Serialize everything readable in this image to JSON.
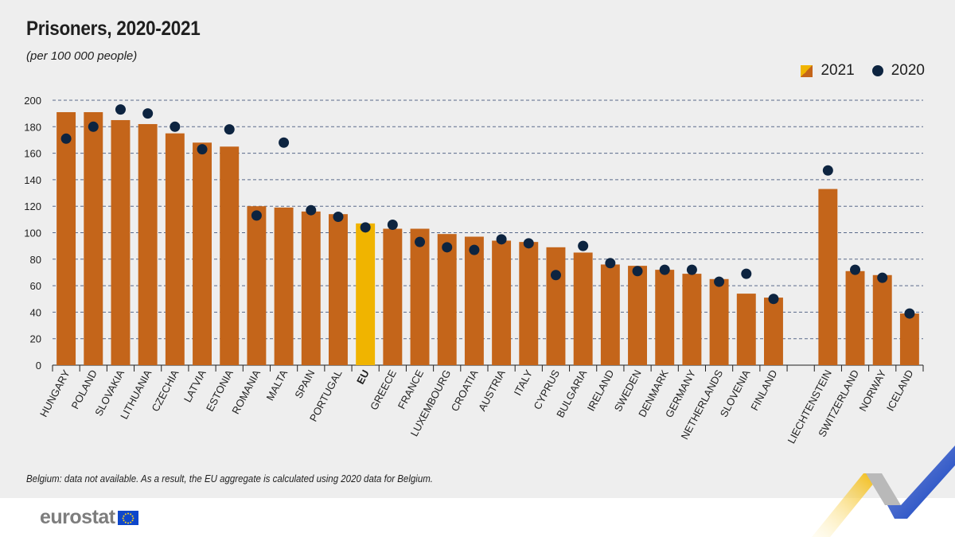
{
  "header": {
    "title": "Prisoners, 2020-2021",
    "subtitle": "(per 100 000 people)"
  },
  "legend": {
    "items": [
      {
        "label": "2021"
      },
      {
        "label": "2020"
      }
    ]
  },
  "colors": {
    "bar": "#c4651a",
    "eu_bar": "#f0b400",
    "dot": "#0d2440",
    "grid": "#5a6a8a"
  },
  "chart_data": {
    "type": "bar",
    "title": "Prisoners, 2020-2021",
    "subtitle": "(per 100 000 people)",
    "ylabel": "",
    "xlabel": "",
    "ylim": [
      0,
      200
    ],
    "yticks": [
      0,
      20,
      40,
      60,
      80,
      100,
      120,
      140,
      160,
      180,
      200
    ],
    "grid": true,
    "legend_position": "top-right",
    "highlight_category": "EU",
    "gap_after": "FINLAND",
    "categories": [
      "HUNGARY",
      "POLAND",
      "SLOVAKIA",
      "LITHUANIA",
      "CZECHIA",
      "LATVIA",
      "ESTONIA",
      "ROMANIA",
      "MALTA",
      "SPAIN",
      "PORTUGAL",
      "EU",
      "GREECE",
      "FRANCE",
      "LUXEMBOURG",
      "CROATIA",
      "AUSTRIA",
      "ITALY",
      "CYPRUS",
      "BULGARIA",
      "IRELAND",
      "SWEDEN",
      "DENMARK",
      "GERMANY",
      "NETHERLANDS",
      "SLOVENIA",
      "FINLAND",
      "LIECHTENSTEIN",
      "SWITZERLAND",
      "NORWAY",
      "ICELAND"
    ],
    "series": [
      {
        "name": "2021",
        "marker": "bar",
        "values": [
          191,
          191,
          185,
          182,
          175,
          168,
          165,
          120,
          119,
          116,
          114,
          107,
          103,
          103,
          99,
          97,
          94,
          93,
          89,
          85,
          76,
          75,
          72,
          69,
          65,
          54,
          51,
          133,
          71,
          68,
          39
        ]
      },
      {
        "name": "2020",
        "marker": "dot",
        "values": [
          171,
          180,
          193,
          190,
          180,
          163,
          178,
          113,
          168,
          117,
          112,
          104,
          106,
          93,
          89,
          87,
          95,
          92,
          68,
          90,
          77,
          71,
          72,
          72,
          63,
          69,
          50,
          147,
          72,
          66,
          39
        ]
      }
    ]
  },
  "footnote": "Belgium: data not available. As a result, the EU aggregate is calculated using 2020 data for Belgium.",
  "footer": {
    "logo_text": "eurostat"
  }
}
